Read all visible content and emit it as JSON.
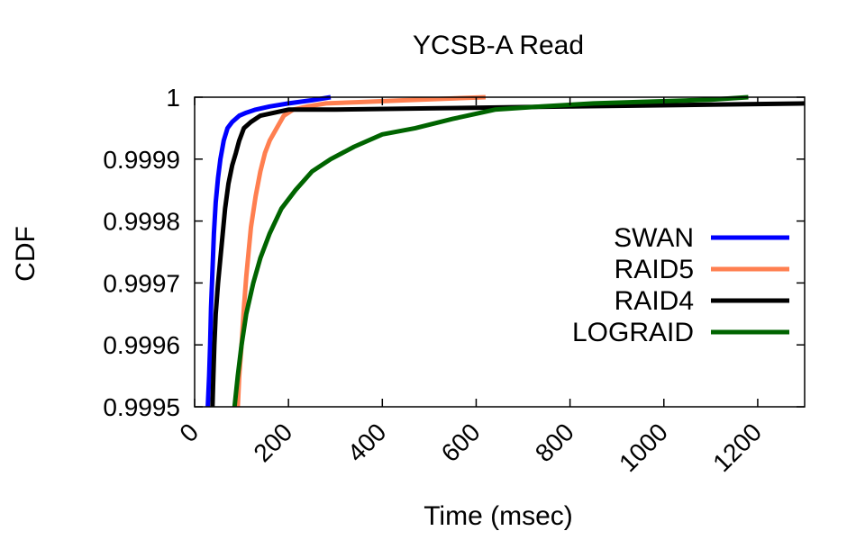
{
  "chart_data": {
    "type": "line",
    "title": "YCSB-A Read",
    "xlabel": "Time (msec)",
    "ylabel": "CDF",
    "xlim": [
      0,
      1300
    ],
    "ylim": [
      0.9995,
      1.0
    ],
    "xticks": [
      0,
      200,
      400,
      600,
      800,
      1000,
      1200
    ],
    "xtick_labels": [
      "0",
      "200",
      "400",
      "600",
      "800",
      "1000",
      "1200"
    ],
    "yticks": [
      0.9995,
      0.9996,
      0.9997,
      0.9998,
      0.9999,
      1.0
    ],
    "ytick_labels": [
      "0.9995",
      "0.9996",
      "0.9997",
      "0.9998",
      "0.9999",
      "1"
    ],
    "grid": false,
    "legend_position": "right",
    "series": [
      {
        "name": "SWAN",
        "color": "#0000ff",
        "x": [
          28,
          31,
          33,
          35,
          38,
          41,
          45,
          50,
          55,
          62,
          70,
          80,
          95,
          110,
          130,
          160,
          200,
          250,
          290
        ],
        "y": [
          0.9995,
          0.99955,
          0.9996,
          0.99966,
          0.99972,
          0.99978,
          0.99983,
          0.99987,
          0.9999,
          0.99993,
          0.99995,
          0.99996,
          0.99997,
          0.999975,
          0.99998,
          0.999985,
          0.99999,
          0.999995,
          1.0
        ]
      },
      {
        "name": "RAID5",
        "color": "#ff7f50",
        "x": [
          92,
          95,
          100,
          105,
          110,
          115,
          120,
          130,
          140,
          150,
          160,
          175,
          190,
          210,
          240,
          280,
          350,
          450,
          550,
          620
        ],
        "y": [
          0.9995,
          0.99955,
          0.9996,
          0.99966,
          0.99971,
          0.99975,
          0.99979,
          0.99984,
          0.99988,
          0.99991,
          0.99993,
          0.99995,
          0.99997,
          0.99998,
          0.999985,
          0.99999,
          0.999992,
          0.999995,
          0.999998,
          1.0
        ]
      },
      {
        "name": "RAID4",
        "color": "#000000",
        "x": [
          38,
          40,
          42,
          45,
          50,
          55,
          60,
          65,
          72,
          80,
          88,
          95,
          105,
          120,
          140,
          170,
          200,
          300,
          500,
          800,
          1100,
          1300
        ],
        "y": [
          0.9995,
          0.99955,
          0.9996,
          0.99965,
          0.9997,
          0.99974,
          0.99978,
          0.99982,
          0.99986,
          0.99989,
          0.99991,
          0.99993,
          0.99995,
          0.99996,
          0.99997,
          0.999975,
          0.99998,
          0.99998,
          0.999982,
          0.999985,
          0.999988,
          0.99999
        ]
      },
      {
        "name": "LOGRAID",
        "color": "#006400",
        "x": [
          85,
          92,
          100,
          110,
          125,
          140,
          160,
          185,
          215,
          250,
          290,
          340,
          400,
          470,
          550,
          640,
          740,
          850,
          980,
          1100,
          1180
        ],
        "y": [
          0.9995,
          0.99955,
          0.9996,
          0.99965,
          0.9997,
          0.99974,
          0.99978,
          0.99982,
          0.99985,
          0.99988,
          0.9999,
          0.99992,
          0.99994,
          0.99995,
          0.999965,
          0.99998,
          0.999985,
          0.99999,
          0.999993,
          0.999996,
          1.0
        ]
      }
    ]
  }
}
